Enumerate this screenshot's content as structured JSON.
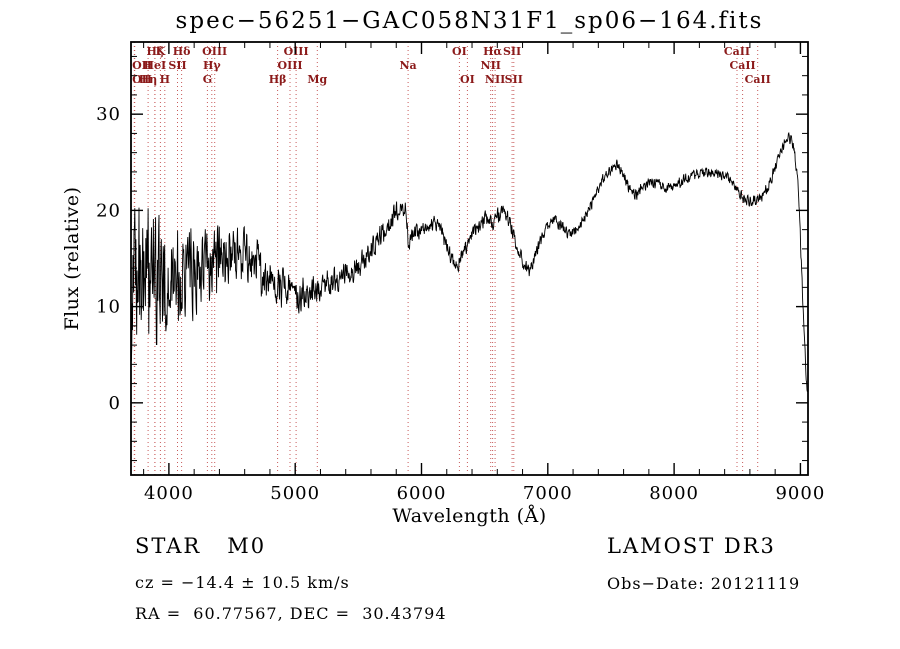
{
  "page": {
    "title": "spec−56251−GAC058N31F1_sp06−164.fits",
    "footer": {
      "classification": "STAR   M0",
      "survey": "LAMOST DR3",
      "cz": "cz = −14.4 ± 10.5 km/s",
      "obs_date": "Obs−Date: 20121119",
      "coords": "RA =  60.77567, DEC =  30.43794"
    }
  },
  "chart_data": {
    "type": "line",
    "title": "spec−56251−GAC058N31F1_sp06−164.fits",
    "xlabel": "Wavelength (Å)",
    "ylabel": "Flux (relative)",
    "xlim": [
      3700,
      9060
    ],
    "ylim": [
      -7.5,
      37.5
    ],
    "xticks": [
      4000,
      5000,
      6000,
      7000,
      8000,
      9000
    ],
    "yticks": [
      0,
      10,
      20,
      30
    ],
    "x_minor_step": 200,
    "y_minor_step": 2,
    "grid": false,
    "legend": "none",
    "colors": {
      "spectrum": "#000000",
      "line_marker": "#c75b5b",
      "line_label": "#8b1a1a",
      "frame": "#000000"
    },
    "spectral_lines": [
      {
        "label": "Hζ",
        "wavelength": 3889,
        "row": 0
      },
      {
        "label": "K",
        "wavelength": 3933,
        "row": 0
      },
      {
        "label": "Hδ",
        "wavelength": 4101,
        "row": 0
      },
      {
        "label": "OIII",
        "wavelength": 4363,
        "row": 0
      },
      {
        "label": "OIII",
        "wavelength": 5007,
        "row": 0
      },
      {
        "label": "OI",
        "wavelength": 6300,
        "row": 0
      },
      {
        "label": "Hα",
        "wavelength": 6563,
        "row": 0
      },
      {
        "label": "SII",
        "wavelength": 6717,
        "row": 0
      },
      {
        "label": "CaII",
        "wavelength": 8498,
        "row": 0
      },
      {
        "label": "OII",
        "wavelength": 3726,
        "row": 1
      },
      {
        "label": "HeI",
        "wavelength": 3889,
        "row": 1
      },
      {
        "label": "SII",
        "wavelength": 4068,
        "row": 1
      },
      {
        "label": "Hγ",
        "wavelength": 4340,
        "row": 1
      },
      {
        "label": "OIII",
        "wavelength": 4959,
        "row": 1
      },
      {
        "label": "Na",
        "wavelength": 5894,
        "row": 1
      },
      {
        "label": "NII",
        "wavelength": 6548,
        "row": 1
      },
      {
        "label": "CaII",
        "wavelength": 8542,
        "row": 1
      },
      {
        "label": "OII",
        "wavelength": 3729,
        "row": 2
      },
      {
        "label": "Hη",
        "wavelength": 3835,
        "row": 2
      },
      {
        "label": "H",
        "wavelength": 3968,
        "row": 2
      },
      {
        "label": "G",
        "wavelength": 4305,
        "row": 2
      },
      {
        "label": "Hβ",
        "wavelength": 4861,
        "row": 2
      },
      {
        "label": "Mg",
        "wavelength": 5175,
        "row": 2
      },
      {
        "label": "OI",
        "wavelength": 6363,
        "row": 2
      },
      {
        "label": "NII",
        "wavelength": 6583,
        "row": 2
      },
      {
        "label": "SII",
        "wavelength": 6731,
        "row": 2
      },
      {
        "label": "CaII",
        "wavelength": 8662,
        "row": 2
      }
    ],
    "series": [
      {
        "name": "spectrum",
        "sample_step": 3,
        "noise_seed": 20121119,
        "envelope_x": [
          3700,
          3750,
          3800,
          3850,
          3900,
          3950,
          4000,
          4050,
          4100,
          4150,
          4200,
          4250,
          4300,
          4350,
          4400,
          4450,
          4500,
          4550,
          4600,
          4650,
          4700,
          4750,
          4800,
          4850,
          4900,
          4950,
          5000,
          5050,
          5100,
          5150,
          5200,
          5250,
          5300,
          5350,
          5400,
          5450,
          5500,
          5550,
          5600,
          5650,
          5700,
          5750,
          5800,
          5850,
          5880,
          5895,
          5910,
          5950,
          6000,
          6050,
          6100,
          6150,
          6200,
          6250,
          6280,
          6310,
          6350,
          6400,
          6450,
          6500,
          6540,
          6565,
          6600,
          6650,
          6700,
          6750,
          6800,
          6850,
          6880,
          6900,
          6950,
          7000,
          7050,
          7100,
          7150,
          7200,
          7250,
          7300,
          7350,
          7400,
          7450,
          7500,
          7550,
          7600,
          7650,
          7700,
          7750,
          7800,
          7850,
          7900,
          7950,
          8000,
          8050,
          8100,
          8150,
          8200,
          8250,
          8300,
          8350,
          8400,
          8450,
          8500,
          8550,
          8600,
          8650,
          8700,
          8750,
          8800,
          8850,
          8900,
          8930,
          8955,
          8975,
          9000,
          9020,
          9040,
          9055
        ],
        "envelope_y": [
          13,
          12.5,
          13,
          12.5,
          13,
          13,
          13.2,
          13,
          13,
          13.3,
          13.8,
          14,
          14.3,
          14.5,
          14.8,
          15,
          15.3,
          15,
          15.8,
          15.3,
          14.3,
          13.5,
          13,
          12.5,
          12,
          11.6,
          11.4,
          11.2,
          11.4,
          11.5,
          12,
          12.4,
          12.8,
          13,
          13.4,
          13.8,
          14.3,
          15.2,
          16,
          17,
          17.8,
          18.8,
          19.8,
          20.4,
          19.8,
          16.8,
          16.9,
          17.4,
          17.9,
          18.4,
          18.9,
          17.9,
          16.4,
          14.6,
          14.1,
          15.1,
          16.3,
          17.4,
          18.4,
          19.3,
          19.1,
          18.4,
          19.4,
          19.9,
          18.9,
          16.6,
          14.6,
          13.6,
          14.2,
          15.3,
          17,
          18.4,
          18.9,
          18.5,
          17.7,
          17.6,
          18.1,
          19.4,
          20.9,
          22.3,
          23.4,
          24.2,
          24.7,
          23.9,
          22.1,
          21.6,
          22.4,
          22.9,
          22.9,
          22.5,
          22.3,
          22.6,
          23,
          23.4,
          23.6,
          23.8,
          23.9,
          23.8,
          23.8,
          23.5,
          23.1,
          22.2,
          21.2,
          20.9,
          21.1,
          21.6,
          22.6,
          24.4,
          26.3,
          27.6,
          27.3,
          25.8,
          23.5,
          17.5,
          10,
          4,
          0.8
        ],
        "noise_x": [
          3700,
          3730,
          3780,
          3850,
          3950,
          4050,
          4150,
          4250,
          4350,
          4450,
          4600,
          4800,
          5000,
          5200,
          5400,
          5600,
          5800,
          6000,
          6300,
          6600,
          7000,
          7400,
          7800,
          8200,
          8600,
          8900,
          9055
        ],
        "noise_amp": [
          11,
          9,
          7.5,
          7,
          6,
          5.2,
          4.6,
          4,
          3.4,
          3,
          2.7,
          2.1,
          1.7,
          1.5,
          1.3,
          1.2,
          1.0,
          0.9,
          0.85,
          0.75,
          0.7,
          0.6,
          0.55,
          0.5,
          0.55,
          0.6,
          0.8
        ]
      }
    ]
  }
}
